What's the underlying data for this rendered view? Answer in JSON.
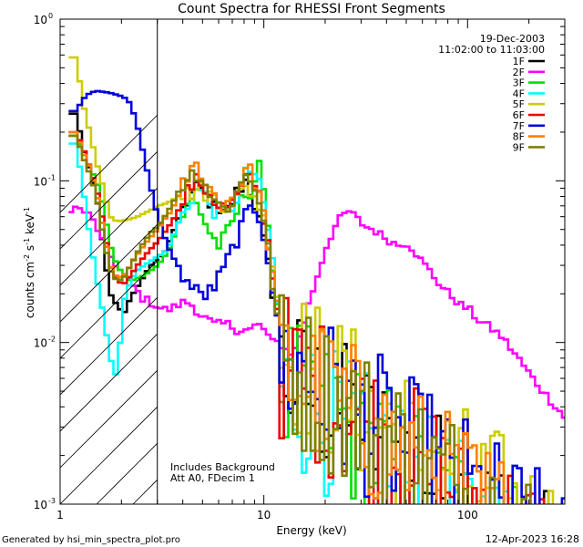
{
  "chart_data": {
    "type": "line",
    "title": "Count Spectra for RHESSI Front Segments",
    "xlabel": "Energy (keV)",
    "ylabel_parts": {
      "a": "counts cm",
      "exp1": "-2",
      "b": " s",
      "exp2": "-1",
      "c": " keV",
      "exp3": "-1"
    },
    "x_scale": "log",
    "y_scale": "log",
    "xlim": [
      1,
      300
    ],
    "ylim": [
      0.001,
      1
    ],
    "x_ticks": [
      {
        "value": 1,
        "label": "1"
      },
      {
        "value": 10,
        "label": "10"
      },
      {
        "value": 100,
        "label": "100"
      }
    ],
    "y_ticks": [
      {
        "value": 0.001,
        "base": "10",
        "exp": "-3"
      },
      {
        "value": 0.01,
        "base": "10",
        "exp": "-2"
      },
      {
        "value": 0.1,
        "base": "10",
        "exp": "-1"
      },
      {
        "value": 1,
        "base": "10",
        "exp": "0"
      }
    ],
    "attenuator_region_max_kev": 3,
    "date": "19-Dec-2003",
    "time_range": "11:02:00 to 11:03:00",
    "annotations": [
      "Includes Background",
      "Att A0, FDecim 1"
    ],
    "series": [
      {
        "name": "1F",
        "color": "#000000",
        "noise_base": 0.0042,
        "values": [
          0.26,
          0.16,
          0.115,
          0.082,
          0.038,
          0.02,
          0.017,
          0.015,
          0.019,
          0.022,
          0.026,
          0.03,
          0.033,
          0.036,
          0.045,
          0.058,
          0.07,
          0.082,
          0.09,
          0.08,
          0.072,
          0.06,
          0.062,
          0.075,
          0.09,
          0.1,
          0.08,
          0.055,
          0.035,
          0.02,
          0.012
        ]
      },
      {
        "name": "2F",
        "color": "#ff00ff",
        "values_main": true,
        "values": [
          0.068,
          0.065,
          0.06,
          0.05,
          0.038,
          0.033,
          0.028,
          0.025,
          0.022,
          0.019,
          0.018,
          0.017,
          0.016,
          0.016,
          0.017,
          0.018,
          0.017,
          0.015,
          0.014,
          0.013,
          0.013,
          0.013,
          0.012,
          0.012,
          0.012,
          0.013,
          0.012,
          0.01,
          0.01,
          0.009,
          0.0085
        ],
        "tail": [
          0.0085,
          0.012,
          0.018,
          0.026,
          0.038,
          0.05,
          0.06,
          0.065,
          0.058,
          0.052,
          0.05,
          0.046,
          0.043,
          0.04,
          0.042,
          0.038,
          0.032,
          0.028,
          0.024,
          0.021,
          0.019,
          0.017,
          0.016,
          0.014,
          0.013,
          0.012,
          0.011,
          0.0095,
          0.0082,
          0.007,
          0.006,
          0.0052,
          0.0045,
          0.004,
          0.0034
        ]
      },
      {
        "name": "3F",
        "color": "#00e000",
        "noise_base": 0.0036,
        "values": [
          0.19,
          0.15,
          0.12,
          0.1,
          0.07,
          0.04,
          0.03,
          0.026,
          0.024,
          0.025,
          0.026,
          0.028,
          0.03,
          0.034,
          0.04,
          0.055,
          0.065,
          0.075,
          0.07,
          0.055,
          0.045,
          0.04,
          0.045,
          0.055,
          0.07,
          0.085,
          0.09,
          0.14,
          0.055,
          0.03,
          0.012
        ]
      },
      {
        "name": "4F",
        "color": "#00ffff",
        "noise_base": 0.0034,
        "values": [
          0.17,
          0.09,
          0.045,
          0.025,
          0.015,
          0.008,
          0.006,
          0.018,
          0.024,
          0.028,
          0.03,
          0.032,
          0.034,
          0.036,
          0.042,
          0.055,
          0.065,
          0.08,
          0.09,
          0.08,
          0.07,
          0.06,
          0.06,
          0.07,
          0.085,
          0.11,
          0.12,
          0.09,
          0.06,
          0.03,
          0.012
        ]
      },
      {
        "name": "5F",
        "color": "#cccc00",
        "noise_base": 0.0058,
        "values": [
          0.58,
          0.3,
          0.2,
          0.13,
          0.09,
          0.06,
          0.056,
          0.057,
          0.058,
          0.06,
          0.063,
          0.066,
          0.07,
          0.072,
          0.075,
          0.08,
          0.082,
          0.085,
          0.09,
          0.085,
          0.08,
          0.075,
          0.072,
          0.075,
          0.08,
          0.09,
          0.085,
          0.07,
          0.05,
          0.03,
          0.015
        ]
      },
      {
        "name": "6F",
        "color": "#ee0000",
        "noise_base": 0.0046,
        "values": [
          0.2,
          0.16,
          0.12,
          0.09,
          0.055,
          0.03,
          0.024,
          0.023,
          0.026,
          0.03,
          0.034,
          0.038,
          0.042,
          0.048,
          0.055,
          0.065,
          0.08,
          0.095,
          0.1,
          0.09,
          0.08,
          0.07,
          0.068,
          0.072,
          0.085,
          0.1,
          0.105,
          0.08,
          0.05,
          0.025,
          0.012
        ]
      },
      {
        "name": "7F",
        "color": "#0000dd",
        "noise_base": 0.005,
        "values": [
          0.27,
          0.32,
          0.35,
          0.36,
          0.355,
          0.35,
          0.34,
          0.33,
          0.3,
          0.22,
          0.14,
          0.09,
          0.06,
          0.045,
          0.035,
          0.03,
          0.025,
          0.022,
          0.02,
          0.02,
          0.021,
          0.025,
          0.03,
          0.038,
          0.048,
          0.06,
          0.07,
          0.06,
          0.04,
          0.02,
          0.01
        ]
      },
      {
        "name": "8F",
        "color": "#ff8000",
        "noise_base": 0.0046,
        "values": [
          0.2,
          0.15,
          0.12,
          0.085,
          0.05,
          0.03,
          0.025,
          0.026,
          0.03,
          0.035,
          0.04,
          0.045,
          0.05,
          0.058,
          0.065,
          0.08,
          0.1,
          0.115,
          0.125,
          0.1,
          0.085,
          0.075,
          0.072,
          0.08,
          0.095,
          0.12,
          0.11,
          0.08,
          0.05,
          0.025,
          0.012
        ]
      },
      {
        "name": "9F",
        "color": "#808000",
        "noise_base": 0.0048,
        "values": [
          0.19,
          0.14,
          0.11,
          0.08,
          0.045,
          0.028,
          0.024,
          0.025,
          0.03,
          0.036,
          0.042,
          0.048,
          0.052,
          0.06,
          0.07,
          0.085,
          0.1,
          0.11,
          0.115,
          0.095,
          0.08,
          0.07,
          0.068,
          0.075,
          0.09,
          0.11,
          0.1,
          0.075,
          0.045,
          0.022,
          0.011
        ]
      }
    ]
  },
  "footer": {
    "generated_by": "Generated by hsi_min_spectra_plot.pro",
    "plot_date": "12-Apr-2023 16:28"
  }
}
